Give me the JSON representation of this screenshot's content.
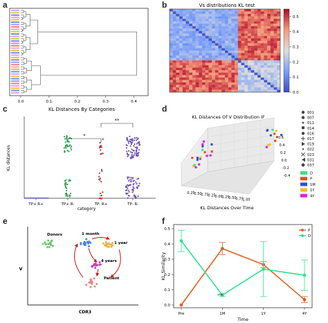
{
  "panels": {
    "a": {
      "label": "a"
    },
    "b": {
      "label": "b"
    },
    "c": {
      "label": "c"
    },
    "d": {
      "label": "d"
    },
    "e": {
      "label": "e"
    },
    "f": {
      "label": "f"
    }
  },
  "chart_data": [
    {
      "id": "a",
      "type": "dendrogram",
      "title": "",
      "xticks": [
        "0.0",
        "0.1",
        "0.2",
        "0.3",
        "0.4"
      ],
      "xlim": [
        0.0,
        0.45
      ],
      "leaf_colors": [
        "#e8a0e8",
        "#f0c040",
        "#7090e8",
        "#e8a0e8",
        "#f0c040",
        "#7090e8",
        "#a0a0f0",
        "#f08080"
      ]
    },
    {
      "id": "b",
      "type": "heatmap",
      "title": "Vs distributions KL test",
      "colorbar_ticks": [
        "0.0",
        "0.1",
        "0.2",
        "0.3",
        "0.4",
        "0.5"
      ],
      "zlim": [
        0.0,
        0.55
      ],
      "colormap": "coolwarm"
    },
    {
      "id": "c",
      "type": "scatter",
      "title": "KL Distances By Categories",
      "xlabel": "category",
      "ylabel": "KL distances",
      "categories": [
        "TP+ R+",
        "TP+ R-",
        "TP- R+",
        "TP- R-"
      ],
      "colors": [
        "#3040c0",
        "#30a050",
        "#c03030",
        "#7050b0"
      ],
      "ranges": [
        [
          0.0,
          0.02
        ],
        [
          0.0,
          0.45
        ],
        [
          0.0,
          0.45
        ],
        [
          0.0,
          0.45
        ]
      ],
      "significance": [
        {
          "between": [
            "TP+ R-",
            "TP- R+"
          ],
          "text": "*"
        },
        {
          "between": [
            "TP- R+",
            "TP- R-"
          ],
          "text": "**"
        }
      ]
    },
    {
      "id": "d",
      "type": "scatter3d",
      "title_line1": "KL Distances Of V Distribution IF",
      "title_line2": "KL Distances Over Time",
      "x_ticks": [
        "0.25",
        "0.50",
        "0.75",
        "0.25",
        "0.00",
        "0.25",
        "0.50",
        "0.75",
        "1.00"
      ],
      "y_ticks": [
        "0.6",
        "0.4",
        "0.2",
        "0.0",
        "-0.2",
        "-0.4"
      ],
      "legend_markers": [
        {
          "label": "001",
          "shape": "circle"
        },
        {
          "label": "007",
          "shape": "hexagon"
        },
        {
          "label": "011",
          "shape": "star"
        },
        {
          "label": "014",
          "shape": "square"
        },
        {
          "label": "016",
          "shape": "pentagon"
        },
        {
          "label": "017",
          "shape": "plus"
        },
        {
          "label": "019",
          "shape": "triangle-right"
        },
        {
          "label": "022",
          "shape": "circle-small"
        },
        {
          "label": "023",
          "shape": "x"
        },
        {
          "label": "031",
          "shape": "triangle-left"
        },
        {
          "label": "037",
          "shape": "diamond"
        }
      ],
      "legend_colors": [
        {
          "label": "D",
          "color": "#40e080"
        },
        {
          "label": "P",
          "color": "#e05020"
        },
        {
          "label": "1M",
          "color": "#3050d0"
        },
        {
          "label": "1Y",
          "color": "#f0c020"
        },
        {
          "label": "4Y",
          "color": "#e020e0"
        }
      ]
    },
    {
      "id": "f",
      "type": "line",
      "xlabel": "Time",
      "ylabel": "KL Similarity",
      "categories": [
        "Pre",
        "1M",
        "1Y",
        "4Y"
      ],
      "ylim": [
        0.0,
        0.5
      ],
      "yticks": [
        "0.0",
        "0.1",
        "0.2",
        "0.3",
        "0.4",
        "0.5"
      ],
      "series": [
        {
          "name": "P",
          "color": "#e06020",
          "values": [
            0.0,
            0.37,
            0.265,
            0.035
          ],
          "err": [
            0,
            0.04,
            0.02,
            0.02
          ]
        },
        {
          "name": "D",
          "color": "#30e090",
          "values": [
            0.42,
            0.065,
            0.235,
            0.195
          ],
          "err": [
            0.07,
            0.01,
            0.18,
            0.1
          ]
        }
      ],
      "annotation": "***"
    }
  ],
  "schematic": {
    "xlabel": "CDR3",
    "ylabel": "V",
    "groups": [
      {
        "label": "Donors",
        "color": "#70c870"
      },
      {
        "label": "1 month",
        "color": "#5080e0"
      },
      {
        "label": "1 year",
        "color": "#f0b040"
      },
      {
        "label": "4 years",
        "color": "#c040c0"
      },
      {
        "label": "Patient",
        "color": "#f08080"
      }
    ]
  }
}
